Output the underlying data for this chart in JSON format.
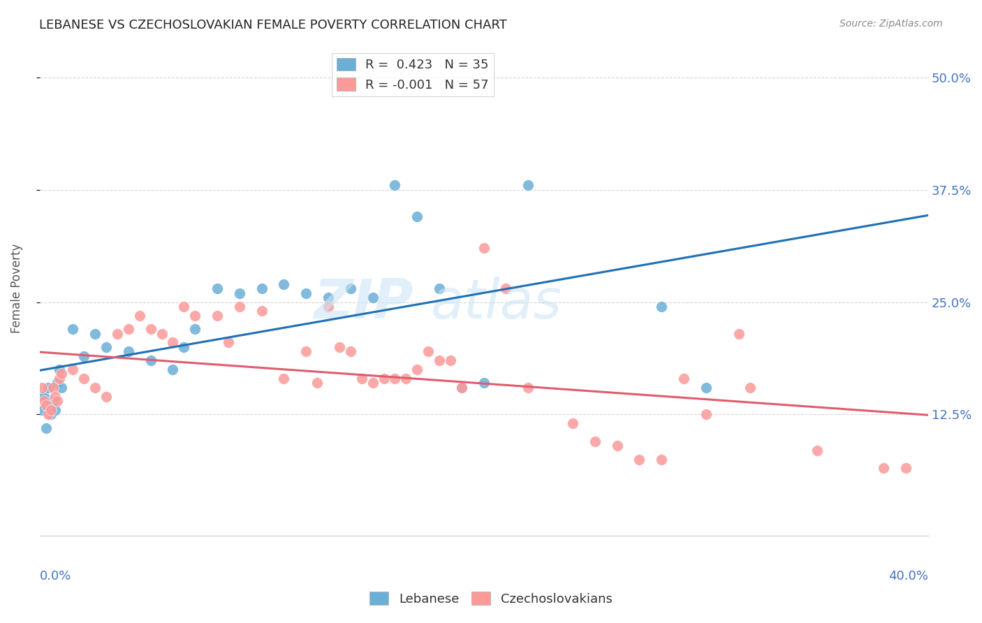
{
  "title": "LEBANESE VS CZECHOSLOVAKIAN FEMALE POVERTY CORRELATION CHART",
  "source": "Source: ZipAtlas.com",
  "ylabel": "Female Poverty",
  "ytick_labels": [
    "12.5%",
    "25.0%",
    "37.5%",
    "50.0%"
  ],
  "ytick_values": [
    0.125,
    0.25,
    0.375,
    0.5
  ],
  "xlim": [
    0.0,
    0.4
  ],
  "ylim": [
    -0.01,
    0.54
  ],
  "legend": {
    "lebanese_R": "0.423",
    "lebanese_N": "35",
    "czech_R": "-0.001",
    "czech_N": "57"
  },
  "lebanese_color": "#6baed6",
  "czech_color": "#fb9a99",
  "trendline_lebanese_color": "#2171b5",
  "trendline_czech_color": "#e05c6e",
  "lebanese_points": [
    [
      0.001,
      0.13
    ],
    [
      0.002,
      0.145
    ],
    [
      0.003,
      0.11
    ],
    [
      0.004,
      0.155
    ],
    [
      0.005,
      0.125
    ],
    [
      0.006,
      0.14
    ],
    [
      0.007,
      0.13
    ],
    [
      0.008,
      0.16
    ],
    [
      0.009,
      0.175
    ],
    [
      0.01,
      0.155
    ],
    [
      0.015,
      0.22
    ],
    [
      0.02,
      0.19
    ],
    [
      0.025,
      0.215
    ],
    [
      0.03,
      0.2
    ],
    [
      0.04,
      0.195
    ],
    [
      0.05,
      0.185
    ],
    [
      0.06,
      0.175
    ],
    [
      0.065,
      0.2
    ],
    [
      0.07,
      0.22
    ],
    [
      0.08,
      0.265
    ],
    [
      0.09,
      0.26
    ],
    [
      0.1,
      0.265
    ],
    [
      0.11,
      0.27
    ],
    [
      0.12,
      0.26
    ],
    [
      0.13,
      0.255
    ],
    [
      0.14,
      0.265
    ],
    [
      0.15,
      0.255
    ],
    [
      0.16,
      0.38
    ],
    [
      0.17,
      0.345
    ],
    [
      0.18,
      0.265
    ],
    [
      0.19,
      0.155
    ],
    [
      0.2,
      0.16
    ],
    [
      0.22,
      0.38
    ],
    [
      0.28,
      0.245
    ],
    [
      0.3,
      0.155
    ]
  ],
  "czech_points": [
    [
      0.001,
      0.155
    ],
    [
      0.002,
      0.14
    ],
    [
      0.003,
      0.135
    ],
    [
      0.004,
      0.125
    ],
    [
      0.005,
      0.13
    ],
    [
      0.006,
      0.155
    ],
    [
      0.007,
      0.145
    ],
    [
      0.008,
      0.14
    ],
    [
      0.009,
      0.165
    ],
    [
      0.01,
      0.17
    ],
    [
      0.015,
      0.175
    ],
    [
      0.02,
      0.165
    ],
    [
      0.025,
      0.155
    ],
    [
      0.03,
      0.145
    ],
    [
      0.035,
      0.215
    ],
    [
      0.04,
      0.22
    ],
    [
      0.045,
      0.235
    ],
    [
      0.05,
      0.22
    ],
    [
      0.055,
      0.215
    ],
    [
      0.06,
      0.205
    ],
    [
      0.065,
      0.245
    ],
    [
      0.07,
      0.235
    ],
    [
      0.08,
      0.235
    ],
    [
      0.085,
      0.205
    ],
    [
      0.09,
      0.245
    ],
    [
      0.1,
      0.24
    ],
    [
      0.11,
      0.165
    ],
    [
      0.12,
      0.195
    ],
    [
      0.125,
      0.16
    ],
    [
      0.13,
      0.245
    ],
    [
      0.135,
      0.2
    ],
    [
      0.14,
      0.195
    ],
    [
      0.145,
      0.165
    ],
    [
      0.15,
      0.16
    ],
    [
      0.155,
      0.165
    ],
    [
      0.16,
      0.165
    ],
    [
      0.165,
      0.165
    ],
    [
      0.17,
      0.175
    ],
    [
      0.175,
      0.195
    ],
    [
      0.18,
      0.185
    ],
    [
      0.185,
      0.185
    ],
    [
      0.19,
      0.155
    ],
    [
      0.2,
      0.31
    ],
    [
      0.21,
      0.265
    ],
    [
      0.22,
      0.155
    ],
    [
      0.24,
      0.115
    ],
    [
      0.25,
      0.095
    ],
    [
      0.26,
      0.09
    ],
    [
      0.27,
      0.075
    ],
    [
      0.28,
      0.075
    ],
    [
      0.29,
      0.165
    ],
    [
      0.3,
      0.125
    ],
    [
      0.315,
      0.215
    ],
    [
      0.32,
      0.155
    ],
    [
      0.35,
      0.085
    ],
    [
      0.38,
      0.065
    ],
    [
      0.39,
      0.065
    ]
  ]
}
